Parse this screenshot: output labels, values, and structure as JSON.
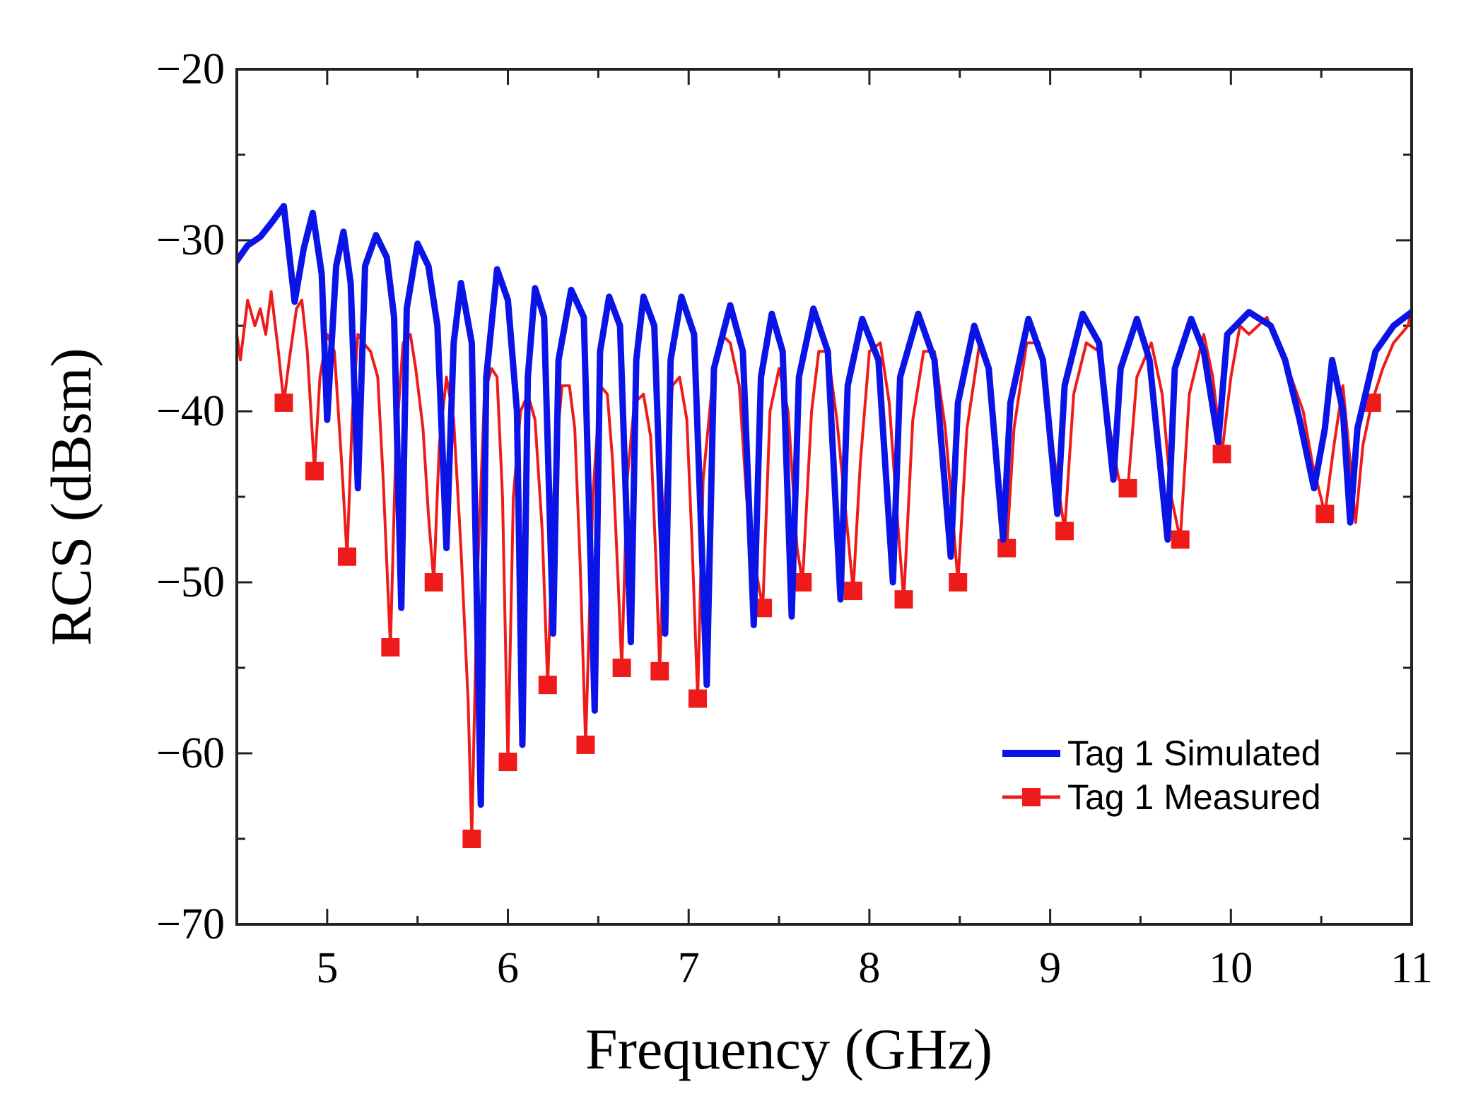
{
  "chart_data": {
    "type": "line",
    "title": "",
    "xlabel": "Frequency (GHz)",
    "ylabel": "RCS (dBsm)",
    "xlim": [
      4.5,
      11
    ],
    "ylim": [
      -70,
      -20
    ],
    "x_ticks": [
      5,
      6,
      7,
      8,
      9,
      10,
      11
    ],
    "y_ticks": [
      -20,
      -30,
      -40,
      -50,
      -60,
      -70
    ],
    "y_tick_labels": [
      "−20",
      "−30",
      "−40",
      "−50",
      "−60",
      "−70"
    ],
    "grid": false,
    "legend_position": "bottom-right",
    "series": [
      {
        "name": "Tag 1 Simulated",
        "color": "#0a14e6",
        "marker": "none",
        "points": [
          [
            4.5,
            -31.2
          ],
          [
            4.56,
            -30.3
          ],
          [
            4.63,
            -29.8
          ],
          [
            4.69,
            -29.0
          ],
          [
            4.76,
            -28.0
          ],
          [
            4.82,
            -33.6
          ],
          [
            4.87,
            -30.5
          ],
          [
            4.92,
            -28.4
          ],
          [
            4.97,
            -32.0
          ],
          [
            5.0,
            -40.5
          ],
          [
            5.05,
            -31.5
          ],
          [
            5.09,
            -29.5
          ],
          [
            5.13,
            -32.5
          ],
          [
            5.17,
            -44.5
          ],
          [
            5.21,
            -31.5
          ],
          [
            5.27,
            -29.7
          ],
          [
            5.33,
            -31.0
          ],
          [
            5.37,
            -34.5
          ],
          [
            5.41,
            -51.5
          ],
          [
            5.44,
            -34.0
          ],
          [
            5.5,
            -30.2
          ],
          [
            5.56,
            -31.5
          ],
          [
            5.61,
            -35.0
          ],
          [
            5.66,
            -48.0
          ],
          [
            5.7,
            -36.0
          ],
          [
            5.74,
            -32.5
          ],
          [
            5.8,
            -36.0
          ],
          [
            5.85,
            -63.0
          ],
          [
            5.88,
            -38.0
          ],
          [
            5.94,
            -31.7
          ],
          [
            6.0,
            -33.5
          ],
          [
            6.05,
            -40.0
          ],
          [
            6.08,
            -59.5
          ],
          [
            6.11,
            -38.0
          ],
          [
            6.15,
            -32.8
          ],
          [
            6.2,
            -34.5
          ],
          [
            6.25,
            -53.0
          ],
          [
            6.28,
            -37.0
          ],
          [
            6.35,
            -32.9
          ],
          [
            6.42,
            -34.5
          ],
          [
            6.48,
            -57.5
          ],
          [
            6.51,
            -36.5
          ],
          [
            6.56,
            -33.3
          ],
          [
            6.62,
            -35.0
          ],
          [
            6.68,
            -53.5
          ],
          [
            6.71,
            -37.0
          ],
          [
            6.75,
            -33.3
          ],
          [
            6.81,
            -35.0
          ],
          [
            6.87,
            -53.0
          ],
          [
            6.9,
            -37.0
          ],
          [
            6.96,
            -33.3
          ],
          [
            7.03,
            -35.5
          ],
          [
            7.1,
            -56.0
          ],
          [
            7.14,
            -37.5
          ],
          [
            7.23,
            -33.8
          ],
          [
            7.3,
            -36.5
          ],
          [
            7.36,
            -52.5
          ],
          [
            7.4,
            -38.0
          ],
          [
            7.46,
            -34.3
          ],
          [
            7.52,
            -36.5
          ],
          [
            7.57,
            -52.0
          ],
          [
            7.61,
            -38.0
          ],
          [
            7.69,
            -34.0
          ],
          [
            7.77,
            -36.5
          ],
          [
            7.84,
            -51.0
          ],
          [
            7.88,
            -38.5
          ],
          [
            7.96,
            -34.6
          ],
          [
            8.05,
            -37.0
          ],
          [
            8.13,
            -50.0
          ],
          [
            8.17,
            -38.0
          ],
          [
            8.27,
            -34.3
          ],
          [
            8.36,
            -37.0
          ],
          [
            8.45,
            -48.5
          ],
          [
            8.49,
            -39.5
          ],
          [
            8.58,
            -35.0
          ],
          [
            8.66,
            -37.5
          ],
          [
            8.74,
            -47.5
          ],
          [
            8.78,
            -39.5
          ],
          [
            8.88,
            -34.6
          ],
          [
            8.96,
            -37.0
          ],
          [
            9.04,
            -46.0
          ],
          [
            9.08,
            -38.5
          ],
          [
            9.18,
            -34.3
          ],
          [
            9.27,
            -36.0
          ],
          [
            9.35,
            -44.0
          ],
          [
            9.39,
            -37.5
          ],
          [
            9.48,
            -34.6
          ],
          [
            9.55,
            -37.0
          ],
          [
            9.65,
            -47.5
          ],
          [
            9.69,
            -37.5
          ],
          [
            9.78,
            -34.6
          ],
          [
            9.85,
            -36.5
          ],
          [
            9.93,
            -41.8
          ],
          [
            9.98,
            -35.5
          ],
          [
            10.1,
            -34.2
          ],
          [
            10.22,
            -35.0
          ],
          [
            10.3,
            -37.0
          ],
          [
            10.38,
            -40.5
          ],
          [
            10.46,
            -44.5
          ],
          [
            10.52,
            -41.0
          ],
          [
            10.56,
            -37.0
          ],
          [
            10.62,
            -40.0
          ],
          [
            10.66,
            -46.5
          ],
          [
            10.7,
            -41.0
          ],
          [
            10.8,
            -36.5
          ],
          [
            10.9,
            -35.0
          ],
          [
            11.0,
            -34.2
          ]
        ]
      },
      {
        "name": "Tag 1 Measured",
        "color": "#ef1b1b",
        "marker": "square",
        "points": [
          [
            4.5,
            -35.5
          ],
          [
            4.52,
            -37.0
          ],
          [
            4.56,
            -33.5
          ],
          [
            4.6,
            -35.0
          ],
          [
            4.63,
            -34.0
          ],
          [
            4.66,
            -35.5
          ],
          [
            4.69,
            -33.0
          ],
          [
            4.73,
            -36.5
          ],
          [
            4.76,
            -39.5
          ],
          [
            4.79,
            -37.0
          ],
          [
            4.83,
            -34.0
          ],
          [
            4.86,
            -33.5
          ],
          [
            4.89,
            -36.5
          ],
          [
            4.93,
            -43.5
          ],
          [
            4.96,
            -38.0
          ],
          [
            5.0,
            -35.5
          ],
          [
            5.04,
            -36.5
          ],
          [
            5.08,
            -43.0
          ],
          [
            5.11,
            -48.5
          ],
          [
            5.14,
            -40.0
          ],
          [
            5.17,
            -35.5
          ],
          [
            5.2,
            -36.0
          ],
          [
            5.24,
            -36.5
          ],
          [
            5.28,
            -38.0
          ],
          [
            5.31,
            -44.0
          ],
          [
            5.35,
            -53.8
          ],
          [
            5.38,
            -42.0
          ],
          [
            5.42,
            -36.0
          ],
          [
            5.46,
            -35.5
          ],
          [
            5.49,
            -37.5
          ],
          [
            5.53,
            -41.0
          ],
          [
            5.56,
            -46.0
          ],
          [
            5.59,
            -50.0
          ],
          [
            5.62,
            -42.0
          ],
          [
            5.66,
            -38.0
          ],
          [
            5.7,
            -40.5
          ],
          [
            5.74,
            -48.0
          ],
          [
            5.78,
            -57.0
          ],
          [
            5.8,
            -65.0
          ],
          [
            5.83,
            -50.0
          ],
          [
            5.87,
            -39.0
          ],
          [
            5.91,
            -37.5
          ],
          [
            5.94,
            -38.0
          ],
          [
            5.97,
            -45.0
          ],
          [
            6.0,
            -60.5
          ],
          [
            6.03,
            -45.0
          ],
          [
            6.07,
            -40.0
          ],
          [
            6.11,
            -39.0
          ],
          [
            6.15,
            -40.5
          ],
          [
            6.19,
            -47.0
          ],
          [
            6.22,
            -56.0
          ],
          [
            6.26,
            -43.0
          ],
          [
            6.3,
            -38.5
          ],
          [
            6.34,
            -38.5
          ],
          [
            6.37,
            -41.0
          ],
          [
            6.4,
            -49.0
          ],
          [
            6.43,
            -59.5
          ],
          [
            6.47,
            -45.0
          ],
          [
            6.51,
            -38.5
          ],
          [
            6.55,
            -39.0
          ],
          [
            6.58,
            -43.0
          ],
          [
            6.61,
            -50.0
          ],
          [
            6.63,
            -55.0
          ],
          [
            6.66,
            -44.0
          ],
          [
            6.7,
            -39.5
          ],
          [
            6.75,
            -39.0
          ],
          [
            6.79,
            -41.5
          ],
          [
            6.82,
            -49.0
          ],
          [
            6.84,
            -55.2
          ],
          [
            6.87,
            -45.0
          ],
          [
            6.91,
            -38.5
          ],
          [
            6.95,
            -38.0
          ],
          [
            6.99,
            -40.5
          ],
          [
            7.02,
            -48.0
          ],
          [
            7.05,
            -56.8
          ],
          [
            7.08,
            -44.0
          ],
          [
            7.13,
            -38.5
          ],
          [
            7.18,
            -35.5
          ],
          [
            7.23,
            -36.0
          ],
          [
            7.28,
            -38.5
          ],
          [
            7.32,
            -45.0
          ],
          [
            7.35,
            -48.0
          ],
          [
            7.41,
            -51.5
          ],
          [
            7.45,
            -40.0
          ],
          [
            7.5,
            -37.5
          ],
          [
            7.55,
            -40.0
          ],
          [
            7.6,
            -48.0
          ],
          [
            7.63,
            -50.0
          ],
          [
            7.68,
            -40.0
          ],
          [
            7.72,
            -36.5
          ],
          [
            7.77,
            -36.5
          ],
          [
            7.82,
            -40.5
          ],
          [
            7.87,
            -46.0
          ],
          [
            7.91,
            -50.5
          ],
          [
            7.95,
            -43.0
          ],
          [
            8.0,
            -36.5
          ],
          [
            8.06,
            -36.0
          ],
          [
            8.11,
            -39.5
          ],
          [
            8.16,
            -47.0
          ],
          [
            8.19,
            -51.0
          ],
          [
            8.24,
            -40.5
          ],
          [
            8.3,
            -36.5
          ],
          [
            8.36,
            -36.5
          ],
          [
            8.42,
            -41.0
          ],
          [
            8.46,
            -46.0
          ],
          [
            8.49,
            -50.0
          ],
          [
            8.54,
            -41.0
          ],
          [
            8.61,
            -36.0
          ],
          [
            8.67,
            -37.5
          ],
          [
            8.72,
            -44.0
          ],
          [
            8.76,
            -48.0
          ],
          [
            8.8,
            -41.0
          ],
          [
            8.87,
            -36.0
          ],
          [
            8.94,
            -36.0
          ],
          [
            9.0,
            -41.0
          ],
          [
            9.04,
            -44.0
          ],
          [
            9.08,
            -47.0
          ],
          [
            9.13,
            -39.0
          ],
          [
            9.2,
            -36.0
          ],
          [
            9.27,
            -36.5
          ],
          [
            9.33,
            -41.0
          ],
          [
            9.38,
            -44.0
          ],
          [
            9.43,
            -44.5
          ],
          [
            9.48,
            -38.0
          ],
          [
            9.56,
            -36.0
          ],
          [
            9.62,
            -39.0
          ],
          [
            9.67,
            -45.0
          ],
          [
            9.72,
            -47.5
          ],
          [
            9.77,
            -39.0
          ],
          [
            9.85,
            -35.5
          ],
          [
            9.9,
            -38.0
          ],
          [
            9.95,
            -42.5
          ],
          [
            10.0,
            -38.0
          ],
          [
            10.05,
            -35.0
          ],
          [
            10.1,
            -35.5
          ],
          [
            10.15,
            -35.0
          ],
          [
            10.2,
            -34.5
          ],
          [
            10.25,
            -36.0
          ],
          [
            10.3,
            -37.0
          ],
          [
            10.35,
            -38.5
          ],
          [
            10.4,
            -40.0
          ],
          [
            10.45,
            -43.0
          ],
          [
            10.52,
            -46.0
          ],
          [
            10.57,
            -42.0
          ],
          [
            10.62,
            -38.5
          ],
          [
            10.66,
            -43.0
          ],
          [
            10.69,
            -46.5
          ],
          [
            10.73,
            -42.0
          ],
          [
            10.78,
            -39.5
          ],
          [
            10.84,
            -37.5
          ],
          [
            10.9,
            -36.0
          ],
          [
            10.94,
            -35.5
          ],
          [
            10.98,
            -35.0
          ],
          [
            11.0,
            -34.0
          ]
        ],
        "marker_x": [
          4.76,
          4.93,
          5.11,
          5.35,
          5.59,
          5.8,
          6.0,
          6.22,
          6.43,
          6.63,
          6.84,
          7.05,
          7.41,
          7.63,
          7.91,
          8.19,
          8.49,
          8.76,
          9.08,
          9.43,
          9.72,
          9.95,
          10.52,
          10.78
        ]
      }
    ]
  }
}
